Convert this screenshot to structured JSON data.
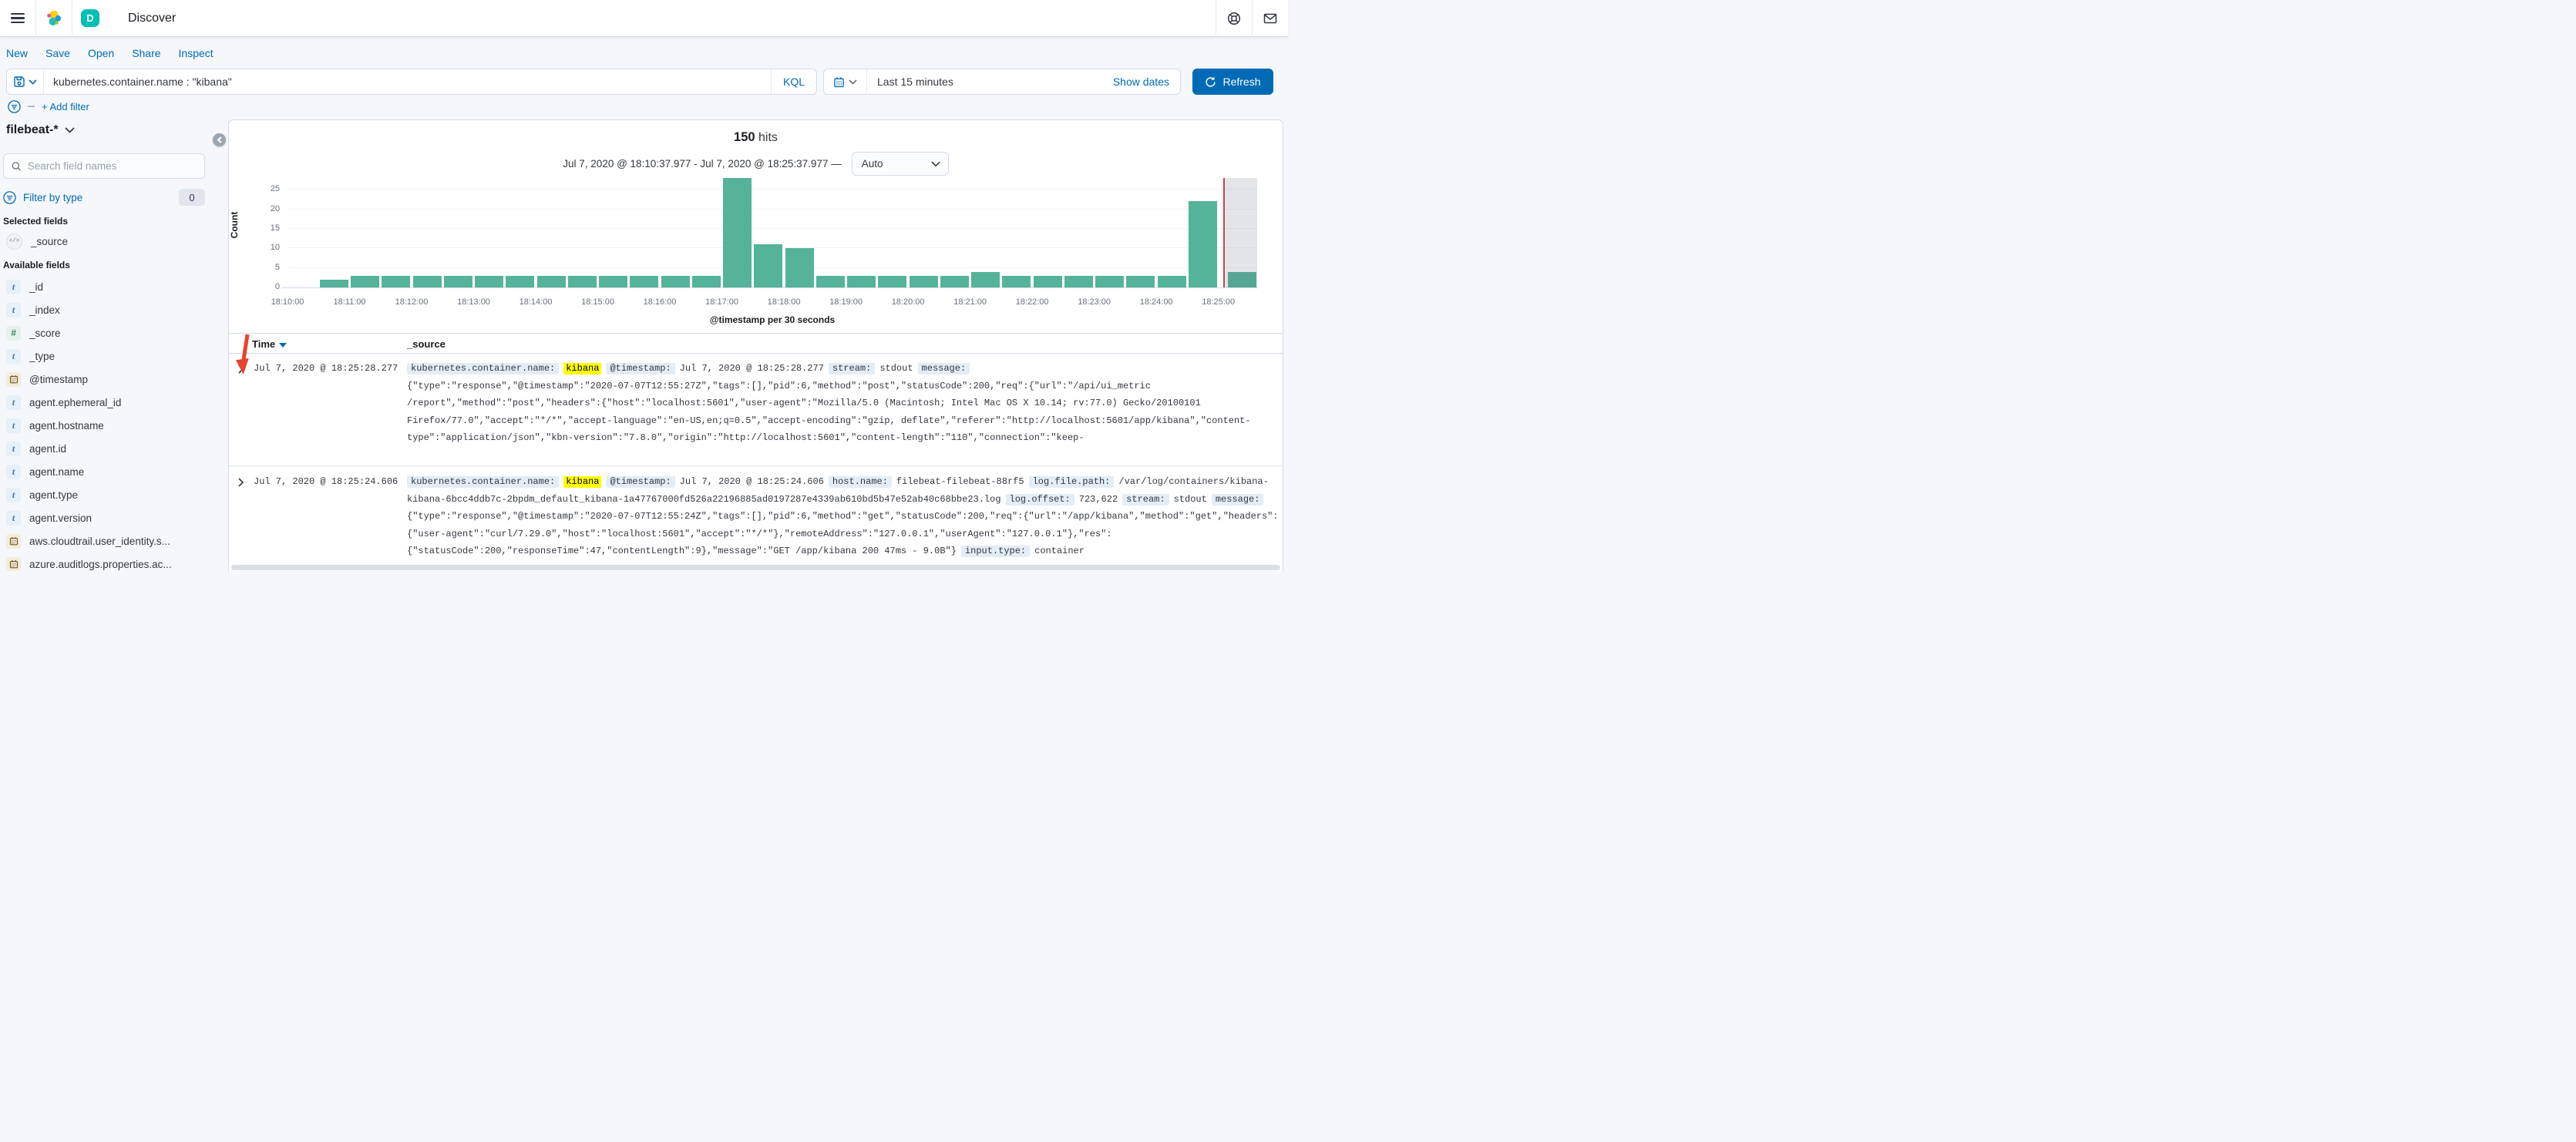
{
  "header": {
    "title": "Discover",
    "app_badge": "D"
  },
  "nav": {
    "items": [
      "New",
      "Save",
      "Open",
      "Share",
      "Inspect"
    ]
  },
  "query": {
    "value": "kubernetes.container.name : \"kibana\"",
    "language": "KQL"
  },
  "time_picker": {
    "value": "Last 15 minutes",
    "show_dates_label": "Show dates",
    "refresh_label": "Refresh"
  },
  "filter_bar": {
    "add_filter_label": "+ Add filter"
  },
  "sidebar": {
    "index_pattern": "filebeat-*",
    "search_placeholder": "Search field names",
    "filter_by_type_label": "Filter by type",
    "filter_count": "0",
    "selected_heading": "Selected fields",
    "selected_fields": [
      {
        "name": "_source",
        "type": "source"
      }
    ],
    "available_heading": "Available fields",
    "available_fields": [
      {
        "name": "_id",
        "type": "t"
      },
      {
        "name": "_index",
        "type": "t"
      },
      {
        "name": "_score",
        "type": "number"
      },
      {
        "name": "_type",
        "type": "t"
      },
      {
        "name": "@timestamp",
        "type": "date"
      },
      {
        "name": "agent.ephemeral_id",
        "type": "t"
      },
      {
        "name": "agent.hostname",
        "type": "t"
      },
      {
        "name": "agent.id",
        "type": "t"
      },
      {
        "name": "agent.name",
        "type": "t"
      },
      {
        "name": "agent.type",
        "type": "t"
      },
      {
        "name": "agent.version",
        "type": "t"
      },
      {
        "name": "aws.cloudtrail.user_identity.s...",
        "type": "date"
      },
      {
        "name": "azure.auditlogs.properties.ac...",
        "type": "date"
      }
    ]
  },
  "hits": {
    "count": "150",
    "label": "hits"
  },
  "range": {
    "text": "Jul 7, 2020 @ 18:10:37.977 - Jul 7, 2020 @ 18:25:37.977 —",
    "interval": "Auto"
  },
  "chart_data": {
    "type": "bar",
    "title": "",
    "xlabel": "@timestamp per 30 seconds",
    "ylabel": "Count",
    "ylim": [
      0,
      28
    ],
    "yticks": [
      0,
      5,
      10,
      15,
      20,
      25
    ],
    "x_start": "18:10:00",
    "x_interval_seconds": 30,
    "x_tick_labels": [
      "18:10:00",
      "18:11:00",
      "18:12:00",
      "18:13:00",
      "18:14:00",
      "18:15:00",
      "18:16:00",
      "18:17:00",
      "18:18:00",
      "18:19:00",
      "18:20:00",
      "18:21:00",
      "18:22:00",
      "18:23:00",
      "18:24:00",
      "18:25:00"
    ],
    "values": [
      0,
      2,
      3,
      3,
      3,
      3,
      3,
      3,
      3,
      3,
      3,
      3,
      3,
      3,
      28,
      11,
      10,
      3,
      3,
      3,
      3,
      3,
      4,
      3,
      3,
      3,
      3,
      3,
      3,
      22,
      4
    ],
    "bar_color": "#54B399",
    "grid": true,
    "annotations": {
      "current_time_marker_color": "#C94742",
      "partial_bucket_region": "last bucket shaded gray"
    }
  },
  "table": {
    "columns": [
      "Time",
      "_source"
    ],
    "rows": [
      {
        "time": "Jul 7, 2020 @ 18:25:28.277",
        "lines": [
          [
            {
              "k": "kubernetes.container.name:"
            },
            {
              "m": "kibana"
            },
            {
              "k": "@timestamp:"
            },
            {
              "t": "Jul 7, 2020 @ 18:25:28.277"
            },
            {
              "k": "stream:"
            },
            {
              "t": "stdout"
            },
            {
              "k": "message:"
            }
          ],
          [
            {
              "t": "{\"type\":\"response\",\"@timestamp\":\"2020-07-07T12:55:27Z\",\"tags\":[],\"pid\":6,\"method\":\"post\",\"statusCode\":200,\"req\":{\"url\":\"/api/ui_metric"
            }
          ],
          [
            {
              "t": "/report\",\"method\":\"post\",\"headers\":{\"host\":\"localhost:5601\",\"user-agent\":\"Mozilla/5.0 (Macintosh; Intel Mac OS X 10.14; rv:77.0) Gecko/20100101"
            }
          ],
          [
            {
              "t": "Firefox/77.0\",\"accept\":\"*/*\",\"accept-language\":\"en-US,en;q=0.5\",\"accept-encoding\":\"gzip, deflate\",\"referer\":\"http://localhost:5601/app/kibana\",\"content-"
            }
          ],
          [
            {
              "t": "type\":\"application/json\",\"kbn-version\":\"7.8.0\",\"origin\":\"http://localhost:5601\",\"content-length\":\"110\",\"connection\":\"keep-"
            }
          ]
        ]
      },
      {
        "time": "Jul 7, 2020 @ 18:25:24.606",
        "lines": [
          [
            {
              "k": "kubernetes.container.name:"
            },
            {
              "m": "kibana"
            },
            {
              "k": "@timestamp:"
            },
            {
              "t": "Jul 7, 2020 @ 18:25:24.606"
            },
            {
              "k": "host.name:"
            },
            {
              "t": "filebeat-filebeat-88rf5"
            },
            {
              "k": "log.file.path:"
            },
            {
              "t": "/var/log/containers/kibana-"
            }
          ],
          [
            {
              "t": "kibana-6bcc4ddb7c-2bpdm_default_kibana-1a47767000fd526a22196885ad0197287e4339ab610bd5b47e52ab40c68bbe23.log"
            },
            {
              "k": "log.offset:"
            },
            {
              "t": "723,622"
            },
            {
              "k": "stream:"
            },
            {
              "t": "stdout"
            },
            {
              "k": "message:"
            }
          ],
          [
            {
              "t": "{\"type\":\"response\",\"@timestamp\":\"2020-07-07T12:55:24Z\",\"tags\":[],\"pid\":6,\"method\":\"get\",\"statusCode\":200,\"req\":{\"url\":\"/app/kibana\",\"method\":\"get\",\"headers\":"
            }
          ],
          [
            {
              "t": "{\"user-agent\":\"curl/7.29.0\",\"host\":\"localhost:5601\",\"accept\":\"*/*\"},\"remoteAddress\":\"127.0.0.1\",\"userAgent\":\"127.0.0.1\"},\"res\":"
            }
          ],
          [
            {
              "t": "{\"statusCode\":200,\"responseTime\":47,\"contentLength\":9},\"message\":\"GET /app/kibana 200 47ms - 9.0B\"}"
            },
            {
              "k": "input.type:"
            },
            {
              "t": "container"
            }
          ]
        ]
      }
    ]
  }
}
